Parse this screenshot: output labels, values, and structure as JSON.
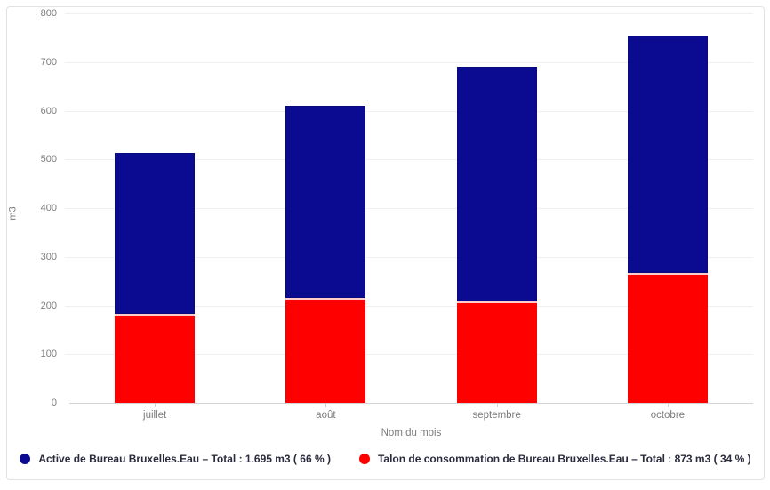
{
  "chart_data": {
    "type": "bar",
    "stacked": true,
    "title": "",
    "xlabel": "Nom du mois",
    "ylabel": "m3",
    "ylim": [
      0,
      800
    ],
    "yticks": [
      0,
      100,
      200,
      300,
      400,
      500,
      600,
      700,
      800
    ],
    "grid": true,
    "legend_position": "bottom",
    "categories": [
      "juillet",
      "août",
      "septembre",
      "octobre"
    ],
    "series": [
      {
        "name": "Active de Bureau Bruxelles.Eau",
        "legend_label": "Active de Bureau Bruxelles.Eau – Total : 1.695 m3 ( 66 % )",
        "total_m3": "1.695",
        "percent": "66",
        "color": "#0b0b91",
        "values": [
          330,
          395,
          482,
          488
        ]
      },
      {
        "name": "Talon de consommation de Bureau Bruxelles.Eau",
        "legend_label": "Talon de consommation de Bureau Bruxelles.Eau – Total : 873 m3 ( 34 % )",
        "total_m3": "873",
        "percent": "34",
        "color": "#ff0000",
        "values": [
          183,
          215,
          208,
          267
        ]
      }
    ],
    "stack_totals": [
      513,
      610,
      690,
      755
    ],
    "stack_order_bottom_to_top": [
      1,
      0
    ],
    "colors": {
      "grid": "#f0f0f0",
      "axis_line": "#d4d4d4",
      "axis_text": "#7c7c7c",
      "legend_text": "#2b2b3e"
    }
  }
}
